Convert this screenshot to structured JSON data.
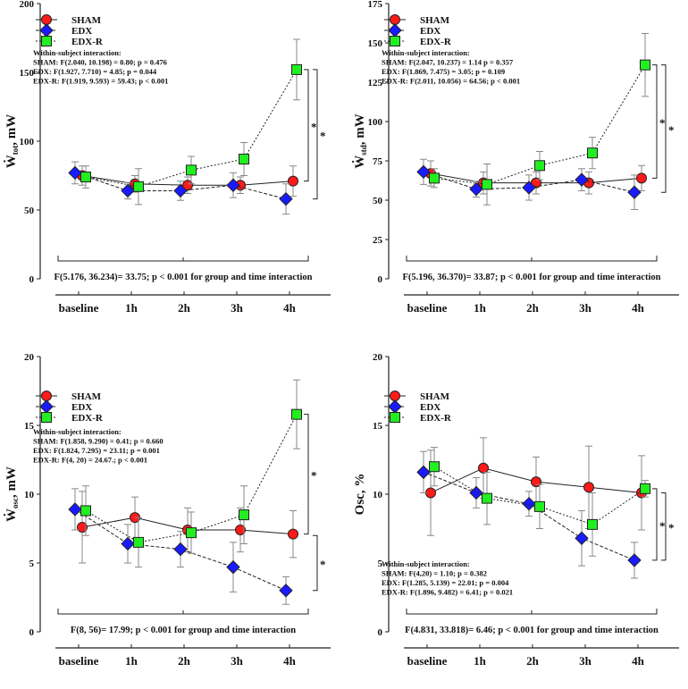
{
  "colors": {
    "SHAM": "#ff1a1a",
    "EDX": "#1a1aff",
    "EDX-R": "#22ee22",
    "axis": "#222222",
    "err": "#888888"
  },
  "chart_data": [
    {
      "type": "line",
      "ylabel": "Ẇtot, mW",
      "ylabel_main": "Ẇ",
      "ylabel_sub": "tot",
      "ylabel_rest": ", mW",
      "categories": [
        "baseline",
        "1h",
        "2h",
        "3h",
        "4h"
      ],
      "ylim": [
        0,
        200
      ],
      "yticks": [
        0,
        50,
        100,
        150,
        200
      ],
      "series": [
        {
          "name": "SHAM",
          "values": [
            75,
            69,
            68,
            68,
            71
          ],
          "err": [
            7,
            6,
            6,
            6,
            11
          ]
        },
        {
          "name": "EDX",
          "values": [
            77,
            64,
            64,
            68,
            58
          ],
          "err": [
            8,
            6,
            7,
            9,
            11
          ]
        },
        {
          "name": "EDX-R",
          "values": [
            74,
            67,
            79,
            87,
            152
          ],
          "err": [
            8,
            13,
            10,
            12,
            22
          ]
        }
      ],
      "stats_title": "Within-subject interaction:",
      "stats": [
        "SHAM: F(2.040, 10.198) = 0.80; p = 0.476",
        "EDX: F(1.927, 7.710) = 4.85; p = 0.044",
        "EDX-R: F(1.919, 9.593) = 59.43; p < 0.001"
      ],
      "group_stat": "F(5.176, 36.234)= 33.75; p < 0.001 for group and time interaction",
      "brackets": [
        {
          "from": 152,
          "to": 71,
          "label": "*"
        },
        {
          "from": 152,
          "to": 58,
          "label": "*"
        }
      ],
      "stats_pos": "top"
    },
    {
      "type": "line",
      "ylabel": "Ẇstd, mW",
      "ylabel_main": "Ẇ",
      "ylabel_sub": "std",
      "ylabel_rest": ", mW",
      "categories": [
        "baseline",
        "1h",
        "2h",
        "3h",
        "4h"
      ],
      "ylim": [
        0,
        175
      ],
      "yticks": [
        0,
        25,
        50,
        75,
        100,
        125,
        150,
        175
      ],
      "series": [
        {
          "name": "SHAM",
          "values": [
            67,
            61,
            61,
            61,
            64
          ],
          "err": [
            8,
            7,
            7,
            7,
            8
          ]
        },
        {
          "name": "EDX",
          "values": [
            68,
            57,
            58,
            63,
            55
          ],
          "err": [
            8,
            5,
            8,
            7,
            11
          ]
        },
        {
          "name": "EDX-R",
          "values": [
            64,
            60,
            72,
            80,
            136
          ],
          "err": [
            6,
            13,
            9,
            10,
            20
          ]
        }
      ],
      "stats_title": "Within-subject interaction:",
      "stats": [
        "SHAM: F(2.047, 10.237) = 1.14 p = 0.357",
        "EDX: F(1.869, 7.475) = 3.05; p = 0.109",
        "EDX-R: F(2.011, 10.056) = 64.56; p < 0.001"
      ],
      "group_stat": "F(5.196, 36.370)= 33.87; p < 0.001 for group and time interaction",
      "brackets": [
        {
          "from": 136,
          "to": 64,
          "label": "*"
        },
        {
          "from": 136,
          "to": 55,
          "label": "*"
        }
      ],
      "stats_pos": "top"
    },
    {
      "type": "line",
      "ylabel": "Ẇosc, mW",
      "ylabel_main": "Ẇ",
      "ylabel_sub": "osc",
      "ylabel_rest": ", mW",
      "categories": [
        "baseline",
        "1h",
        "2h",
        "3h",
        "4h"
      ],
      "ylim": [
        0,
        20
      ],
      "yticks": [
        0,
        5,
        10,
        15,
        20
      ],
      "series": [
        {
          "name": "SHAM",
          "values": [
            7.6,
            8.3,
            7.4,
            7.4,
            7.1
          ],
          "err": [
            2.6,
            1.5,
            1.6,
            1.6,
            1.7
          ]
        },
        {
          "name": "EDX",
          "values": [
            8.9,
            6.4,
            6.0,
            4.7,
            3.0
          ],
          "err": [
            1.5,
            1.4,
            1.3,
            1.8,
            1.0
          ]
        },
        {
          "name": "EDX-R",
          "values": [
            8.8,
            6.5,
            7.2,
            8.5,
            15.8
          ],
          "err": [
            1.8,
            1.8,
            1.5,
            2.1,
            2.5
          ]
        }
      ],
      "stats_title": "Within-subject interaction:",
      "stats": [
        "SHAM: F(1.858, 9.290) = 0.41; p = 0.660",
        "EDX: F(1.824, 7.295) = 23.11; p = 0.001",
        "EDX-R: F(4, 20) = 24.67.; p < 0.001"
      ],
      "group_stat": "F(8, 56)= 17.99; p < 0.001 for group and time interaction",
      "brackets": [
        {
          "from": 15.8,
          "to": 7.1,
          "label": "*"
        },
        {
          "from": 7.0,
          "to": 3.0,
          "label": "*"
        }
      ],
      "stats_pos": "top"
    },
    {
      "type": "line",
      "ylabel": "Osc, %",
      "ylabel_main": "Osc, %",
      "ylabel_sub": "",
      "ylabel_rest": "",
      "categories": [
        "baseline",
        "1h",
        "2h",
        "3h",
        "4h"
      ],
      "ylim": [
        0,
        20
      ],
      "yticks": [
        0,
        5,
        10,
        15,
        20
      ],
      "series": [
        {
          "name": "SHAM",
          "values": [
            10.1,
            11.9,
            10.9,
            10.5,
            10.1
          ],
          "err": [
            3.1,
            2.2,
            1.8,
            3.0,
            2.7
          ]
        },
        {
          "name": "EDX",
          "values": [
            11.6,
            10.1,
            9.3,
            6.8,
            5.2
          ],
          "err": [
            1.5,
            1.1,
            0.9,
            2.0,
            1.3
          ]
        },
        {
          "name": "EDX-R",
          "values": [
            12.0,
            9.7,
            9.1,
            7.8,
            10.4
          ],
          "err": [
            1.4,
            1.9,
            1.6,
            2.3,
            0.6
          ]
        }
      ],
      "stats_title": "Within-subject interaction:",
      "stats": [
        "SHAM: F(4,20) = 1.10; p = 0.382",
        "EDX: F(1.285, 5.139) = 22.01; p = 0.004",
        "EDX-R: F(1.896, 9.482) = 6.41; p = 0.021"
      ],
      "group_stat": "F(4.831, 33.818)= 6.46; p < 0.001 for group and time interaction",
      "brackets": [
        {
          "from": 10.4,
          "to": 5.2,
          "label": "*"
        },
        {
          "from": 10.1,
          "to": 5.2,
          "label": "*"
        }
      ],
      "stats_pos": "bottom"
    }
  ]
}
